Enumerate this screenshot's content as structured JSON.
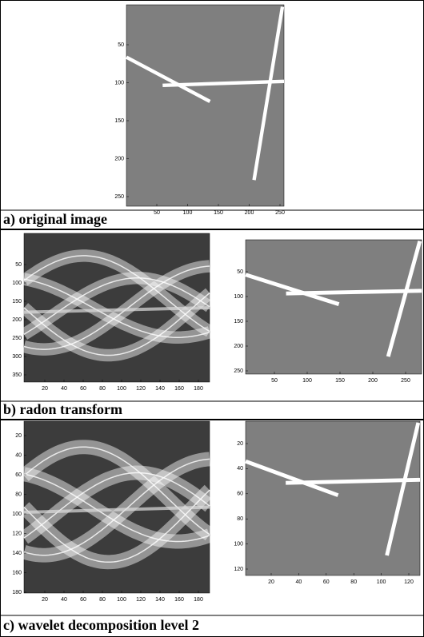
{
  "figure": {
    "panels": [
      {
        "images": [
          {
            "yticks": [
              50,
              100,
              150,
              200,
              250
            ],
            "xticks": [
              50,
              100,
              150,
              200,
              250
            ]
          }
        ],
        "caption": "a) original image"
      },
      {
        "images": [
          {
            "yticks": [
              50,
              100,
              150,
              200,
              250,
              300,
              350
            ],
            "xticks": [
              20,
              40,
              60,
              80,
              100,
              120,
              140,
              160,
              180
            ]
          },
          {
            "yticks": [
              50,
              100,
              150,
              200,
              250
            ],
            "xticks": [
              50,
              100,
              150,
              200,
              250
            ]
          }
        ],
        "caption": "b) radon transform"
      },
      {
        "images": [
          {
            "yticks": [
              20,
              40,
              60,
              80,
              100,
              120,
              140,
              160,
              180
            ],
            "xticks": [
              20,
              40,
              60,
              80,
              100,
              120,
              140,
              160,
              180
            ]
          },
          {
            "yticks": [
              20,
              40,
              60,
              80,
              100,
              120
            ],
            "xticks": [
              20,
              40,
              60,
              80,
              100,
              120
            ]
          }
        ],
        "caption": "c) wavelet decomposition level 2"
      }
    ]
  }
}
